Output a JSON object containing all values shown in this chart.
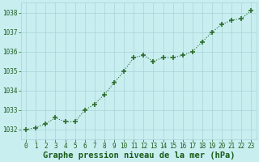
{
  "x": [
    0,
    1,
    2,
    3,
    4,
    5,
    6,
    7,
    8,
    9,
    10,
    11,
    12,
    13,
    14,
    15,
    16,
    17,
    18,
    19,
    20,
    21,
    22,
    23
  ],
  "y": [
    1032.0,
    1032.1,
    1032.3,
    1032.6,
    1032.4,
    1032.4,
    1033.0,
    1033.3,
    1033.8,
    1034.4,
    1035.0,
    1035.7,
    1035.8,
    1035.5,
    1035.7,
    1035.7,
    1035.8,
    1036.0,
    1036.5,
    1037.0,
    1037.4,
    1037.6,
    1037.7,
    1038.1
  ],
  "line_color": "#2d6e2d",
  "marker_color": "#2d6e2d",
  "bg_color": "#c8eef0",
  "grid_color": "#a8d4d8",
  "xlabel": "Graphe pression niveau de la mer (hPa)",
  "xlabel_color": "#1a5c1a",
  "tick_color": "#1a5c1a",
  "ylim": [
    1031.5,
    1038.5
  ],
  "yticks": [
    1032,
    1033,
    1034,
    1035,
    1036,
    1037,
    1038
  ],
  "xlim": [
    -0.5,
    23.5
  ],
  "xlabel_fontsize": 7.5,
  "tick_fontsize": 5.5
}
